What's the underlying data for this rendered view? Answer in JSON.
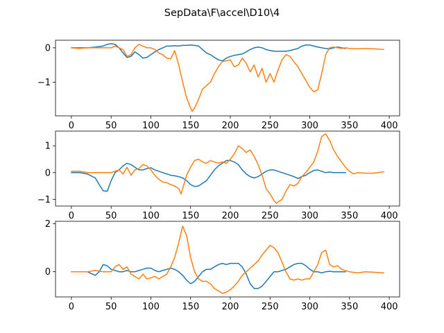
{
  "title": "SepData\\F\\accel\\D10\\4",
  "colors": {
    "series_a": "#1f77b4",
    "series_b": "#ff7f0e",
    "axes": "#000000",
    "background": "#ffffff"
  },
  "chart_data": [
    {
      "type": "line",
      "title": "",
      "xlabel": "",
      "ylabel": "",
      "xlim": [
        -20,
        413
      ],
      "ylim": [
        -1.98,
        0.22
      ],
      "xticks": [
        0,
        50,
        100,
        150,
        200,
        250,
        300,
        350,
        400
      ],
      "yticks": [
        0,
        -1
      ],
      "xtick_labels": [
        "0",
        "50",
        "100",
        "150",
        "200",
        "250",
        "300",
        "350",
        "400"
      ],
      "ytick_labels": [
        "0",
        "−1"
      ],
      "grid": false,
      "series": [
        {
          "color": "#1f77b4",
          "x": [
            0,
            10,
            20,
            30,
            40,
            45,
            50,
            55,
            60,
            65,
            70,
            75,
            80,
            85,
            90,
            95,
            100,
            105,
            110,
            115,
            120,
            125,
            130,
            135,
            140,
            145,
            150,
            155,
            160,
            165,
            170,
            175,
            180,
            185,
            190,
            195,
            200,
            205,
            210,
            215,
            220,
            225,
            230,
            235,
            240,
            245,
            250,
            255,
            260,
            265,
            270,
            275,
            280,
            285,
            290,
            295,
            300,
            305,
            310,
            315,
            320,
            325,
            330,
            335,
            340,
            345
          ],
          "y": [
            0.0,
            0.0,
            0.0,
            0.02,
            0.05,
            0.1,
            0.12,
            0.1,
            0.0,
            -0.15,
            -0.28,
            -0.25,
            -0.12,
            -0.2,
            -0.3,
            -0.28,
            -0.2,
            -0.12,
            -0.05,
            0.0,
            0.05,
            0.05,
            0.06,
            0.05,
            0.07,
            0.07,
            0.08,
            0.07,
            0.05,
            -0.05,
            -0.15,
            -0.2,
            -0.28,
            -0.35,
            -0.38,
            -0.3,
            -0.25,
            -0.22,
            -0.2,
            -0.18,
            -0.12,
            -0.05,
            0.0,
            0.02,
            0.0,
            -0.05,
            -0.08,
            -0.1,
            -0.1,
            -0.1,
            -0.1,
            -0.08,
            -0.05,
            -0.02,
            0.05,
            0.08,
            0.08,
            0.05,
            0.02,
            0.0,
            -0.02,
            -0.03,
            0.0,
            0.02,
            0.0,
            -0.02
          ]
        },
        {
          "color": "#ff7f0e",
          "x": [
            0,
            10,
            20,
            30,
            40,
            50,
            55,
            60,
            65,
            70,
            75,
            80,
            85,
            90,
            95,
            100,
            105,
            110,
            115,
            120,
            125,
            130,
            135,
            140,
            145,
            150,
            152,
            155,
            160,
            165,
            170,
            175,
            180,
            185,
            190,
            195,
            200,
            205,
            210,
            215,
            220,
            225,
            230,
            235,
            240,
            245,
            250,
            255,
            260,
            265,
            270,
            275,
            280,
            285,
            290,
            295,
            300,
            305,
            310,
            315,
            320,
            325,
            330,
            335,
            340,
            345,
            350,
            360,
            370,
            380,
            393
          ],
          "y": [
            0.0,
            -0.02,
            0.0,
            0.0,
            0.0,
            0.0,
            0.05,
            0.0,
            -0.05,
            -0.25,
            -0.2,
            0.0,
            0.1,
            0.05,
            0.0,
            0.0,
            -0.05,
            -0.15,
            -0.2,
            -0.3,
            -0.32,
            -0.08,
            -0.5,
            -1.0,
            -1.45,
            -1.75,
            -1.85,
            -1.75,
            -1.5,
            -1.2,
            -1.1,
            -1.0,
            -0.75,
            -0.55,
            -0.4,
            -0.38,
            -0.35,
            -0.55,
            -0.5,
            -0.3,
            -0.45,
            -0.7,
            -0.5,
            -0.85,
            -0.6,
            -1.0,
            -0.75,
            -1.0,
            -0.65,
            -0.35,
            -0.2,
            -0.25,
            -0.4,
            -0.55,
            -0.75,
            -0.95,
            -1.15,
            -1.28,
            -1.22,
            -0.75,
            -0.2,
            0.0,
            0.02,
            0.0,
            -0.02,
            0.0,
            -0.02,
            -0.03,
            -0.02,
            -0.03,
            -0.05
          ]
        }
      ]
    },
    {
      "type": "line",
      "title": "",
      "xlabel": "",
      "ylabel": "",
      "xlim": [
        -20,
        413
      ],
      "ylim": [
        -1.25,
        1.55
      ],
      "xticks": [
        0,
        50,
        100,
        150,
        200,
        250,
        300,
        350,
        400
      ],
      "yticks": [
        1,
        0,
        -1
      ],
      "xtick_labels": [
        "0",
        "50",
        "100",
        "150",
        "200",
        "250",
        "300",
        "350",
        "400"
      ],
      "ytick_labels": [
        "1",
        "0",
        "−1"
      ],
      "grid": false,
      "series": [
        {
          "color": "#1f77b4",
          "x": [
            0,
            10,
            20,
            30,
            35,
            40,
            45,
            50,
            55,
            60,
            65,
            70,
            75,
            80,
            85,
            90,
            95,
            100,
            105,
            110,
            115,
            120,
            125,
            130,
            135,
            140,
            145,
            150,
            155,
            160,
            165,
            170,
            175,
            180,
            185,
            190,
            195,
            200,
            205,
            210,
            215,
            220,
            225,
            230,
            235,
            240,
            245,
            250,
            255,
            260,
            265,
            270,
            275,
            280,
            285,
            290,
            295,
            300,
            305,
            310,
            315,
            320,
            325,
            330,
            335,
            340,
            345
          ],
          "y": [
            0.0,
            0.0,
            -0.05,
            -0.2,
            -0.45,
            -0.68,
            -0.7,
            -0.3,
            0.0,
            0.1,
            0.25,
            0.35,
            0.3,
            0.2,
            0.1,
            0.1,
            0.15,
            0.18,
            0.1,
            0.05,
            0.0,
            -0.05,
            -0.1,
            -0.12,
            -0.15,
            -0.2,
            -0.3,
            -0.45,
            -0.52,
            -0.5,
            -0.4,
            -0.3,
            -0.1,
            0.1,
            0.25,
            0.35,
            0.45,
            0.45,
            0.4,
            0.3,
            0.1,
            -0.05,
            -0.15,
            -0.2,
            -0.15,
            -0.05,
            0.05,
            0.1,
            0.1,
            0.05,
            0.0,
            -0.05,
            -0.1,
            -0.15,
            -0.22,
            -0.15,
            -0.1,
            0.0,
            0.08,
            0.1,
            0.05,
            0.0,
            0.02,
            0.0,
            0.0,
            0.0,
            0.0
          ]
        },
        {
          "color": "#ff7f0e",
          "x": [
            0,
            10,
            20,
            30,
            40,
            50,
            60,
            65,
            70,
            75,
            80,
            85,
            90,
            95,
            100,
            105,
            110,
            115,
            120,
            125,
            130,
            135,
            138,
            140,
            145,
            150,
            155,
            160,
            165,
            170,
            175,
            180,
            185,
            190,
            195,
            200,
            205,
            210,
            215,
            220,
            225,
            230,
            235,
            240,
            245,
            250,
            255,
            258,
            260,
            265,
            270,
            275,
            280,
            285,
            290,
            295,
            300,
            305,
            310,
            315,
            320,
            325,
            330,
            335,
            340,
            345,
            350,
            355,
            360,
            370,
            380,
            393
          ],
          "y": [
            0.05,
            0.05,
            0.0,
            0.0,
            0.0,
            0.0,
            0.1,
            -0.05,
            0.2,
            -0.1,
            0.1,
            0.15,
            0.3,
            0.25,
            0.1,
            -0.1,
            -0.25,
            -0.35,
            -0.38,
            -0.45,
            -0.5,
            -0.6,
            -0.8,
            -0.6,
            -0.1,
            0.2,
            0.45,
            0.5,
            0.4,
            0.35,
            0.45,
            0.4,
            0.35,
            0.4,
            0.35,
            0.5,
            0.7,
            1.0,
            0.9,
            0.75,
            0.85,
            0.6,
            0.3,
            -0.1,
            -0.6,
            -0.8,
            -1.05,
            -1.15,
            -1.1,
            -1.0,
            -0.7,
            -0.45,
            -0.5,
            -0.4,
            -0.15,
            0.0,
            0.2,
            0.4,
            0.8,
            1.35,
            1.45,
            1.2,
            0.85,
            0.6,
            0.4,
            0.2,
            0.05,
            -0.05,
            0.0,
            -0.02,
            -0.02,
            0.03
          ]
        }
      ]
    },
    {
      "type": "line",
      "title": "",
      "xlabel": "",
      "ylabel": "",
      "xlim": [
        -20,
        413
      ],
      "ylim": [
        -1.05,
        2.1
      ],
      "xticks": [
        0,
        50,
        100,
        150,
        200,
        250,
        300,
        350,
        400
      ],
      "yticks": [
        2,
        0
      ],
      "xtick_labels": [
        "0",
        "50",
        "100",
        "150",
        "200",
        "250",
        "300",
        "350",
        "400"
      ],
      "ytick_labels": [
        "2",
        "0"
      ],
      "grid": false,
      "series": [
        {
          "color": "#1f77b4",
          "x": [
            0,
            10,
            20,
            30,
            35,
            40,
            45,
            50,
            55,
            60,
            65,
            70,
            75,
            80,
            85,
            90,
            95,
            100,
            105,
            110,
            115,
            120,
            125,
            130,
            135,
            140,
            145,
            150,
            155,
            160,
            165,
            170,
            175,
            180,
            185,
            190,
            195,
            200,
            205,
            210,
            215,
            220,
            225,
            230,
            235,
            240,
            245,
            250,
            255,
            260,
            265,
            270,
            275,
            280,
            285,
            290,
            295,
            300,
            305,
            310,
            315,
            320,
            325,
            330,
            335,
            340,
            345
          ],
          "y": [
            0.0,
            0.0,
            0.0,
            -0.15,
            0.0,
            0.3,
            0.25,
            0.1,
            0.05,
            0.0,
            0.0,
            0.05,
            0.0,
            0.0,
            0.05,
            0.1,
            0.15,
            0.15,
            0.05,
            0.0,
            0.05,
            0.1,
            0.15,
            0.1,
            0.0,
            -0.15,
            -0.35,
            -0.5,
            -0.4,
            -0.2,
            0.0,
            0.1,
            0.1,
            0.2,
            0.3,
            0.35,
            0.3,
            0.35,
            0.35,
            0.35,
            0.2,
            -0.1,
            -0.5,
            -0.7,
            -0.7,
            -0.6,
            -0.4,
            -0.2,
            0.0,
            0.0,
            0.05,
            0.1,
            0.2,
            0.3,
            0.35,
            0.35,
            0.25,
            0.1,
            0.0,
            0.0,
            -0.05,
            0.0,
            0.02,
            0.0,
            0.0,
            0.0,
            0.0
          ]
        },
        {
          "color": "#ff7f0e",
          "x": [
            0,
            10,
            20,
            30,
            40,
            50,
            55,
            60,
            65,
            70,
            75,
            80,
            85,
            90,
            95,
            100,
            105,
            110,
            115,
            120,
            125,
            130,
            135,
            140,
            145,
            150,
            155,
            160,
            165,
            170,
            175,
            180,
            185,
            190,
            195,
            200,
            205,
            210,
            215,
            220,
            225,
            230,
            235,
            240,
            245,
            250,
            255,
            260,
            265,
            270,
            275,
            280,
            285,
            290,
            295,
            300,
            305,
            310,
            315,
            320,
            325,
            330,
            335,
            340,
            350,
            360,
            370,
            380,
            393
          ],
          "y": [
            0.0,
            0.0,
            0.0,
            0.05,
            0.0,
            0.0,
            0.2,
            0.3,
            0.1,
            0.2,
            -0.1,
            -0.2,
            -0.3,
            -0.1,
            -0.3,
            -0.25,
            -0.2,
            -0.3,
            -0.2,
            -0.1,
            0.2,
            0.6,
            1.2,
            1.9,
            1.5,
            0.6,
            0.0,
            -0.3,
            -0.4,
            -0.4,
            -0.5,
            -0.7,
            -0.8,
            -0.9,
            -0.85,
            -0.75,
            -0.6,
            -0.4,
            -0.15,
            0.0,
            0.15,
            0.3,
            0.45,
            0.7,
            0.9,
            1.1,
            1.0,
            0.8,
            0.4,
            0.0,
            -0.3,
            -0.35,
            -0.3,
            -0.35,
            -0.3,
            -0.3,
            0.0,
            0.3,
            0.8,
            0.9,
            0.3,
            0.2,
            0.25,
            0.1,
            0.0,
            -0.05,
            0.0,
            -0.02,
            -0.05
          ]
        }
      ]
    }
  ]
}
